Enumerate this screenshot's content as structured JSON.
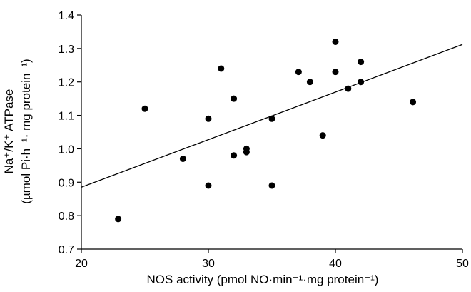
{
  "chart_data": {
    "type": "scatter",
    "xlabel": "NOS activity (pmol NO·min⁻¹·mg protein⁻¹)",
    "ylabel_line1": "Na⁺/K⁺ ATPase",
    "ylabel_line2": "(µmol Pi·h⁻¹· mg protein⁻¹)",
    "xlim": [
      20,
      50
    ],
    "ylim": [
      0.7,
      1.4
    ],
    "x_ticks": [
      20,
      30,
      40,
      50
    ],
    "y_ticks": [
      0.7,
      0.8,
      0.9,
      1.0,
      1.1,
      1.2,
      1.3,
      1.4
    ],
    "x_tick_labels": [
      "20",
      "30",
      "40",
      "50"
    ],
    "y_tick_labels": [
      "0.7",
      "0.8",
      "0.9",
      "1.0",
      "1.1",
      "1.2",
      "1.3",
      "1.4"
    ],
    "points": [
      {
        "x": 22.9,
        "y": 0.79
      },
      {
        "x": 25.0,
        "y": 1.12
      },
      {
        "x": 28.0,
        "y": 0.97
      },
      {
        "x": 30.0,
        "y": 1.09
      },
      {
        "x": 30.0,
        "y": 0.89
      },
      {
        "x": 31.0,
        "y": 1.24
      },
      {
        "x": 32.0,
        "y": 1.15
      },
      {
        "x": 32.0,
        "y": 0.98
      },
      {
        "x": 33.0,
        "y": 1.0
      },
      {
        "x": 33.0,
        "y": 0.99
      },
      {
        "x": 35.0,
        "y": 1.09
      },
      {
        "x": 35.0,
        "y": 0.89
      },
      {
        "x": 37.1,
        "y": 1.23
      },
      {
        "x": 38.0,
        "y": 1.2
      },
      {
        "x": 39.0,
        "y": 1.04
      },
      {
        "x": 40.0,
        "y": 1.32
      },
      {
        "x": 40.0,
        "y": 1.23
      },
      {
        "x": 41.0,
        "y": 1.18
      },
      {
        "x": 42.0,
        "y": 1.26
      },
      {
        "x": 42.0,
        "y": 1.2
      },
      {
        "x": 46.1,
        "y": 1.14
      }
    ],
    "trendline": {
      "x": [
        20,
        50
      ],
      "y": [
        0.885,
        1.312
      ]
    },
    "grid": false
  }
}
